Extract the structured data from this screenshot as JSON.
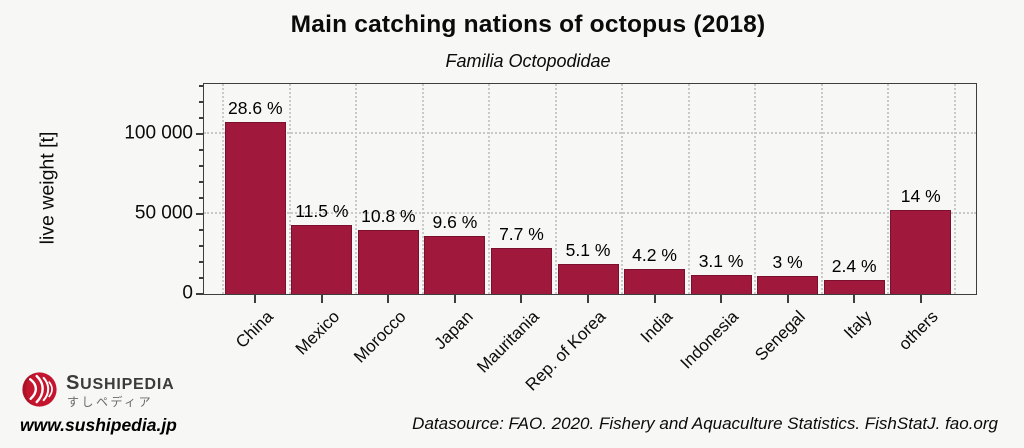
{
  "chart_data": {
    "type": "bar",
    "title": "Main catching nations of octopus (2018)",
    "subtitle": "Familia Octopodidae",
    "ylabel": "live weight [t]",
    "ylim": [
      0,
      131000
    ],
    "ytick_values": [
      0,
      50000,
      100000
    ],
    "ytick_labels": [
      "0",
      "50 000",
      "100 000"
    ],
    "y_minor_tick_step": 10000,
    "grid": "dotted",
    "legend": "none",
    "bar_color": "#a0193c",
    "categories": [
      "China",
      "Mexico",
      "Morocco",
      "Japan",
      "Mauritania",
      "Rep. of Korea",
      "India",
      "Indonesia",
      "Senegal",
      "Italy",
      "others"
    ],
    "values": [
      107000,
      43000,
      40000,
      36000,
      28800,
      19000,
      15700,
      11600,
      11200,
      9000,
      52500
    ],
    "percent_labels": [
      "28.6 %",
      "11.5 %",
      "10.8 %",
      "9.6 %",
      "7.7 %",
      "5.1 %",
      "4.2 %",
      "3.1 %",
      "3 %",
      "2.4 %",
      "14 %"
    ]
  },
  "branding": {
    "name": "Sushipedia",
    "name_kana": "すしペディア",
    "website": "www.sushipedia.jp",
    "logo_color": "#c4152e"
  },
  "footer": {
    "datasource": "Datasource: FAO. 2020. Fishery and Aquaculture Statistics. FishStatJ. fao.org"
  }
}
